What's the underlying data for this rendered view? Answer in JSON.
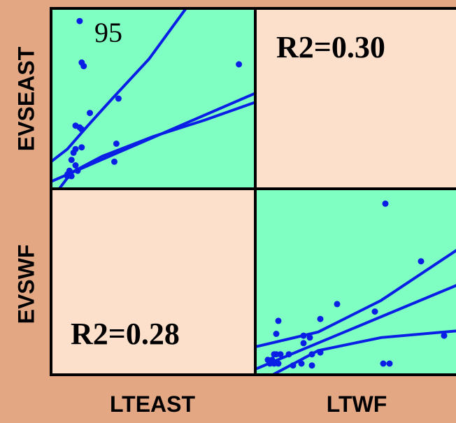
{
  "colors": {
    "background": "#e3a784",
    "scatter_panel": "#80ffc2",
    "r2_panel": "#fde0cb",
    "points": "#0a1fe6",
    "lines": "#0a1fe6",
    "border": "#000000"
  },
  "labels": {
    "row_evseast": "EVSEAST",
    "row_evswf": "EVSWF",
    "col_lteast": "LTEAST",
    "col_ltwf": "LTWF"
  },
  "chart_data": [
    {
      "type": "scatter",
      "panel": "EVSEAST vs LTEAST",
      "annotation": "95",
      "x_range": [
        0,
        1
      ],
      "y_range": [
        0,
        1
      ],
      "points": [
        [
          0.14,
          0.93
        ],
        [
          0.15,
          0.7
        ],
        [
          0.16,
          0.68
        ],
        [
          0.19,
          0.42
        ],
        [
          0.12,
          0.35
        ],
        [
          0.14,
          0.34
        ],
        [
          0.15,
          0.33
        ],
        [
          0.33,
          0.5
        ],
        [
          0.32,
          0.25
        ],
        [
          0.31,
          0.15
        ],
        [
          0.12,
          0.22
        ],
        [
          0.15,
          0.23
        ],
        [
          0.1,
          0.16
        ],
        [
          0.12,
          0.13
        ],
        [
          0.13,
          0.1
        ],
        [
          0.09,
          0.1
        ],
        [
          0.1,
          0.07
        ],
        [
          0.08,
          0.08
        ],
        [
          0.08,
          0.07
        ],
        [
          0.11,
          0.2
        ],
        [
          0.92,
          0.69
        ]
      ],
      "fit": [
        [
          0.0,
          0.04
        ],
        [
          1.0,
          0.53
        ]
      ],
      "ci_upper": [
        [
          0.0,
          0.15
        ],
        [
          0.08,
          0.22
        ],
        [
          0.18,
          0.35
        ],
        [
          0.3,
          0.5
        ],
        [
          0.48,
          0.72
        ],
        [
          0.68,
          1.03
        ]
      ],
      "ci_lower": [
        [
          0.0,
          -0.06
        ],
        [
          0.1,
          0.09
        ],
        [
          0.25,
          0.18
        ],
        [
          0.5,
          0.29
        ],
        [
          0.75,
          0.38
        ],
        [
          1.0,
          0.48
        ]
      ]
    },
    {
      "type": "r2",
      "panel": "EVSEAST vs LTWF",
      "text": "R2=0.30"
    },
    {
      "type": "r2",
      "panel": "EVSWF vs LTEAST",
      "text": "R2=0.28"
    },
    {
      "type": "scatter",
      "panel": "EVSWF vs LTWF",
      "x_range": [
        0,
        1
      ],
      "y_range": [
        0,
        1
      ],
      "points": [
        [
          0.62,
          0.92
        ],
        [
          0.79,
          0.61
        ],
        [
          0.39,
          0.38
        ],
        [
          0.57,
          0.34
        ],
        [
          0.31,
          0.3
        ],
        [
          0.11,
          0.29
        ],
        [
          0.1,
          0.22
        ],
        [
          0.23,
          0.21
        ],
        [
          0.26,
          0.2
        ],
        [
          0.23,
          0.17
        ],
        [
          0.09,
          0.11
        ],
        [
          0.1,
          0.11
        ],
        [
          0.12,
          0.11
        ],
        [
          0.16,
          0.11
        ],
        [
          0.27,
          0.11
        ],
        [
          0.31,
          0.12
        ],
        [
          0.06,
          0.08
        ],
        [
          0.08,
          0.08
        ],
        [
          0.07,
          0.06
        ],
        [
          0.09,
          0.06
        ],
        [
          0.11,
          0.06
        ],
        [
          0.18,
          0.05
        ],
        [
          0.22,
          0.06
        ],
        [
          0.27,
          0.05
        ],
        [
          0.61,
          0.06
        ],
        [
          0.64,
          0.06
        ],
        [
          0.9,
          0.21
        ]
      ],
      "fit": [
        [
          0.0,
          0.03
        ],
        [
          1.0,
          0.5
        ]
      ],
      "ci_upper": [
        [
          0.0,
          0.15
        ],
        [
          0.3,
          0.23
        ],
        [
          0.6,
          0.4
        ],
        [
          1.0,
          0.7
        ]
      ],
      "ci_lower": [
        [
          0.0,
          -0.05
        ],
        [
          0.3,
          0.13
        ],
        [
          0.6,
          0.2
        ],
        [
          1.0,
          0.24
        ]
      ]
    }
  ]
}
